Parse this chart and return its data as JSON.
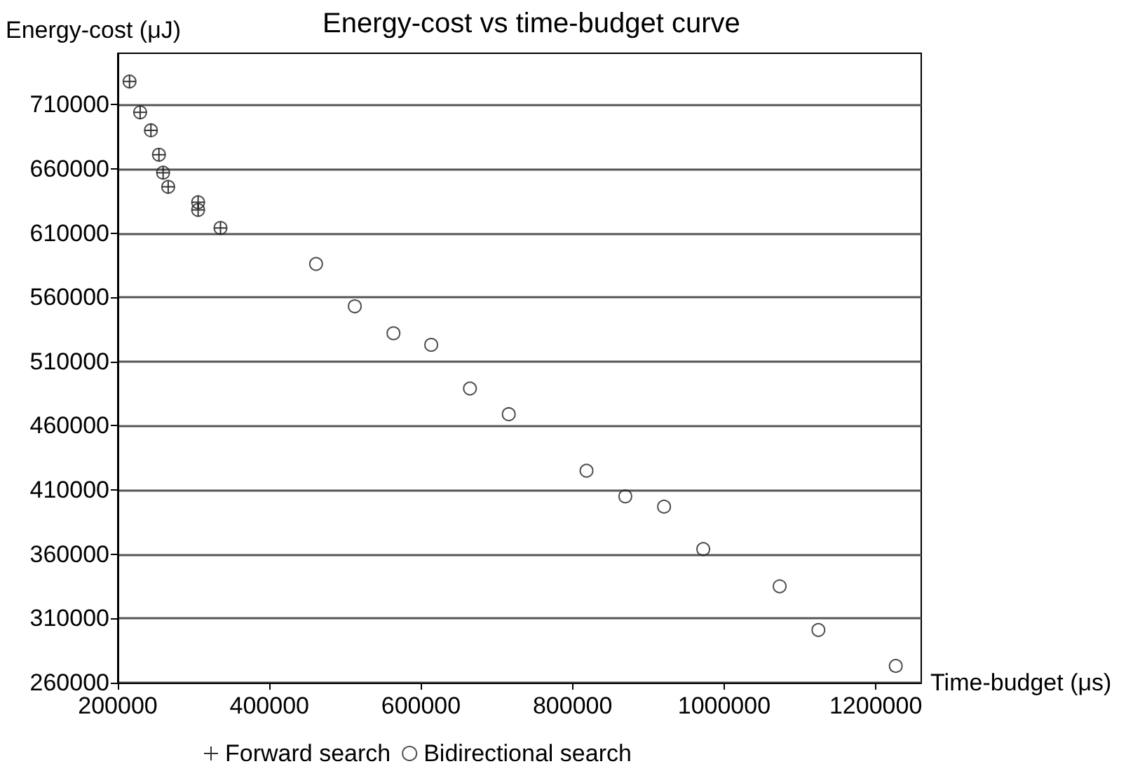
{
  "chart_data": {
    "type": "scatter",
    "title": "Energy-cost vs time-budget curve",
    "xlabel": "Time-budget (μs)",
    "ylabel": "Energy-cost (μJ)",
    "xlim": [
      200000,
      1260000
    ],
    "xticks": [
      200000,
      400000,
      600000,
      800000,
      1000000,
      1200000
    ],
    "ylim": [
      260000,
      750000
    ],
    "yticks": [
      260000,
      310000,
      360000,
      410000,
      460000,
      510000,
      560000,
      610000,
      660000,
      710000
    ],
    "grid": "y",
    "legend": "bottom",
    "series": [
      {
        "name": "Forward search",
        "color": "#000000",
        "marker": "cross",
        "x": [
          215500,
          229500,
          243700,
          254300,
          259800,
          266500,
          306000,
          306000,
          335500
        ],
        "values": [
          728000,
          704000,
          690000,
          671000,
          657000,
          646000,
          634000,
          628000,
          614000
        ]
      },
      {
        "name": "Bidirectional search",
        "color": "#222222",
        "marker": "circle",
        "x": [
          215500,
          229500,
          243700,
          254300,
          259800,
          266500,
          306000,
          306000,
          335500,
          461600,
          512700,
          563700,
          613500,
          664600,
          715800,
          818400,
          869600,
          920700,
          972400,
          1073200,
          1124300,
          1226400
        ],
        "values": [
          728000,
          704000,
          690000,
          671000,
          657000,
          646000,
          634000,
          628000,
          614000,
          586000,
          553000,
          532000,
          523000,
          489000,
          469000,
          425000,
          405000,
          397000,
          364000,
          335000,
          301000,
          273000
        ]
      }
    ]
  }
}
